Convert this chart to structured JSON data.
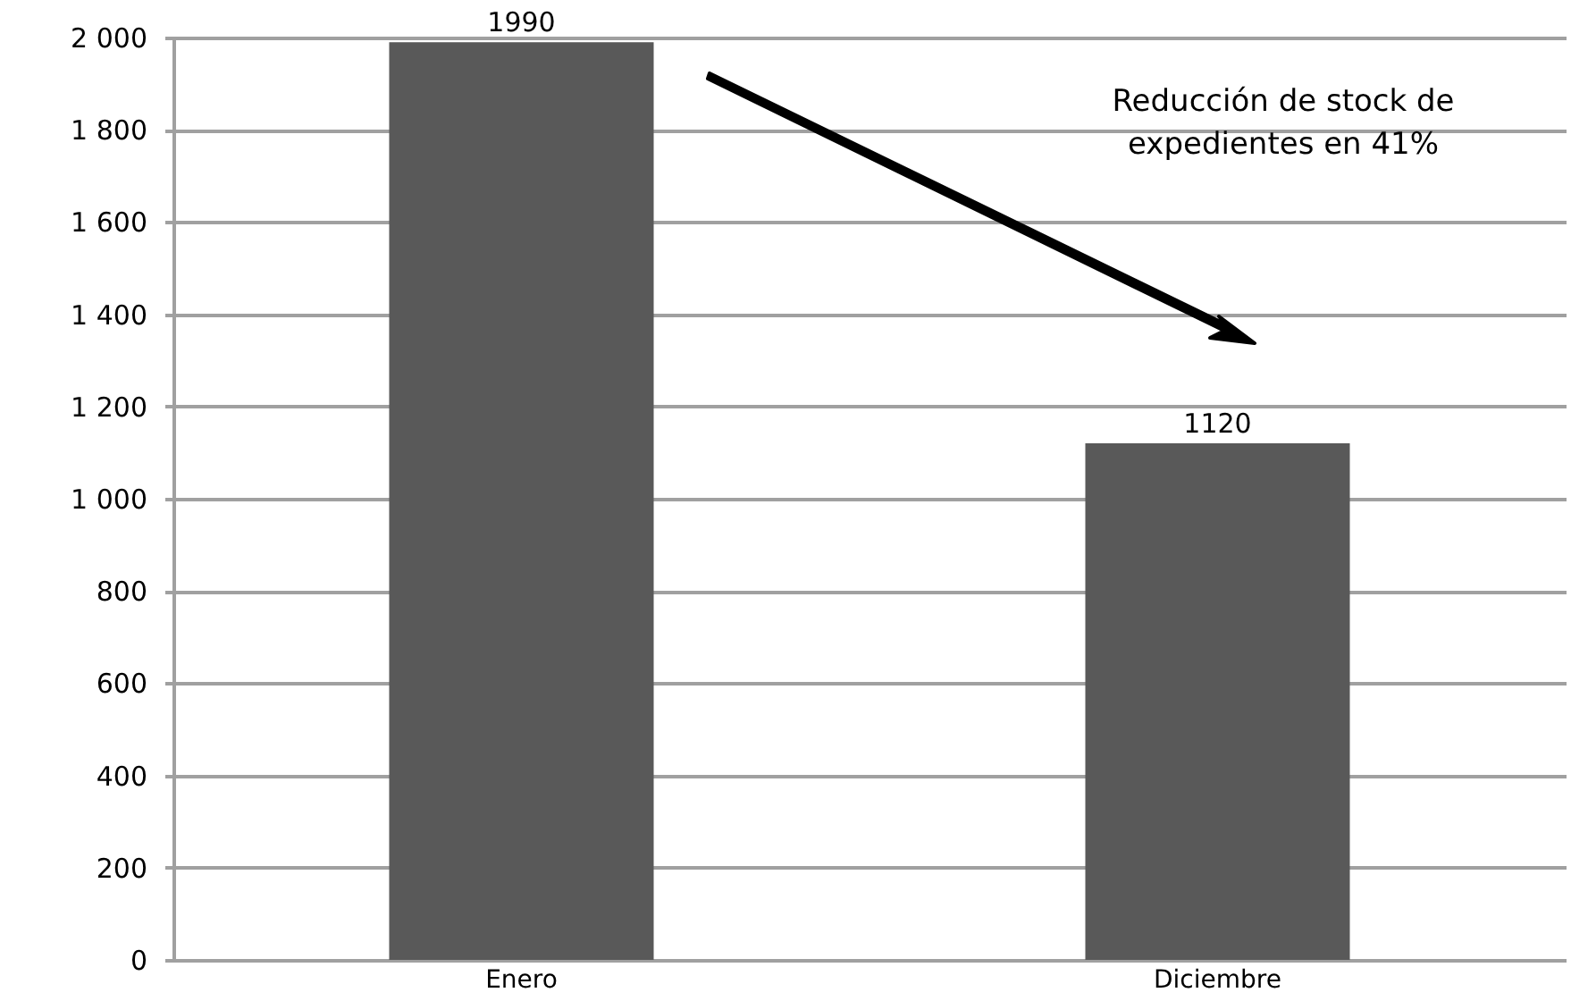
{
  "chart_data": {
    "type": "bar",
    "categories": [
      "Enero",
      "Diciembre"
    ],
    "values": [
      1990,
      1120
    ],
    "color": "#595959",
    "ylim": [
      0,
      2000
    ],
    "yticks": [
      0,
      200,
      400,
      600,
      800,
      {
        "value": 1000,
        "label": "1 000"
      },
      {
        "value": 1200,
        "label": "1 200"
      },
      {
        "value": 1400,
        "label": "1 400"
      },
      {
        "value": 1600,
        "label": "1 600"
      },
      {
        "value": 1800,
        "label": "1 800"
      },
      {
        "value": 2000,
        "label": "2 000"
      }
    ],
    "grid": "y",
    "data_labels": true,
    "annotations": [
      "Reducción de stock de\nexpedientes en 41%"
    ]
  }
}
